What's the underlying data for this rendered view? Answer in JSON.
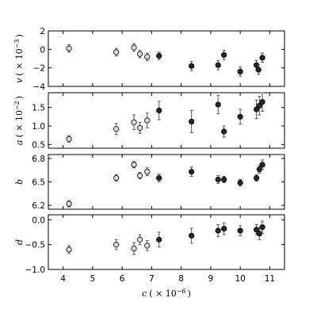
{
  "chart_data": {
    "type": "scatter",
    "layout": "four vertically stacked panels sharing the x axis",
    "grid": false,
    "legend": "none",
    "xlabel": {
      "symbol": "c",
      "unit": "( × 10",
      "exp": "−6",
      "close": ")"
    },
    "xlim": [
      3.5,
      11.5
    ],
    "xticks": [
      4,
      5,
      6,
      7,
      8,
      9,
      10,
      11
    ],
    "colors": {
      "light_marker": "#d9d9d9",
      "dark_marker": "#262626",
      "marker_edge": "#000000",
      "error_bar": "#555555",
      "axis": "#000000"
    },
    "panels": [
      {
        "id": "v",
        "ylabel": {
          "symbol": "v",
          "unit": "( × 10",
          "exp": "−3",
          "close": ")"
        },
        "ylim": [
          -4,
          2
        ],
        "yticks": [
          -4,
          -2,
          0,
          2
        ],
        "points": [
          {
            "x": 4.2,
            "y": 0.1,
            "err": 0.4,
            "group": "light"
          },
          {
            "x": 5.8,
            "y": -0.3,
            "err": 0.4,
            "group": "light"
          },
          {
            "x": 6.4,
            "y": 0.2,
            "err": 0.4,
            "group": "light"
          },
          {
            "x": 6.6,
            "y": -0.5,
            "err": 0.4,
            "group": "light"
          },
          {
            "x": 6.85,
            "y": -0.8,
            "err": 0.4,
            "group": "light"
          },
          {
            "x": 7.25,
            "y": -0.7,
            "err": 0.4,
            "group": "dark"
          },
          {
            "x": 8.35,
            "y": -1.8,
            "err": 0.5,
            "group": "dark"
          },
          {
            "x": 9.25,
            "y": -1.7,
            "err": 0.5,
            "group": "dark"
          },
          {
            "x": 9.45,
            "y": -0.6,
            "err": 0.5,
            "group": "dark"
          },
          {
            "x": 10.0,
            "y": -2.4,
            "err": 0.5,
            "group": "dark"
          },
          {
            "x": 10.55,
            "y": -1.7,
            "err": 0.5,
            "group": "dark"
          },
          {
            "x": 10.62,
            "y": -2.2,
            "err": 0.5,
            "group": "dark"
          },
          {
            "x": 10.75,
            "y": -0.9,
            "err": 0.5,
            "group": "dark"
          }
        ]
      },
      {
        "id": "a",
        "ylabel": {
          "symbol": "a",
          "unit": "( × 10",
          "exp": "−2",
          "close": ")"
        },
        "ylim": [
          0.4,
          1.9
        ],
        "yticks": [
          0.5,
          1.0,
          1.5
        ],
        "points": [
          {
            "x": 4.2,
            "y": 0.65,
            "err": 0.09,
            "group": "light"
          },
          {
            "x": 5.8,
            "y": 0.92,
            "err": 0.15,
            "group": "light"
          },
          {
            "x": 6.4,
            "y": 1.1,
            "err": 0.2,
            "group": "light"
          },
          {
            "x": 6.6,
            "y": 0.95,
            "err": 0.15,
            "group": "light"
          },
          {
            "x": 6.85,
            "y": 1.15,
            "err": 0.2,
            "group": "light"
          },
          {
            "x": 7.25,
            "y": 1.42,
            "err": 0.25,
            "group": "dark"
          },
          {
            "x": 8.35,
            "y": 1.12,
            "err": 0.3,
            "group": "dark"
          },
          {
            "x": 9.25,
            "y": 1.58,
            "err": 0.25,
            "group": "dark"
          },
          {
            "x": 9.45,
            "y": 0.85,
            "err": 0.15,
            "group": "dark"
          },
          {
            "x": 10.0,
            "y": 1.25,
            "err": 0.2,
            "group": "dark"
          },
          {
            "x": 10.55,
            "y": 1.45,
            "err": 0.25,
            "group": "dark"
          },
          {
            "x": 10.65,
            "y": 1.55,
            "err": 0.25,
            "group": "dark"
          },
          {
            "x": 10.75,
            "y": 1.65,
            "err": 0.25,
            "group": "dark"
          }
        ]
      },
      {
        "id": "b",
        "ylabel": {
          "symbol": "b",
          "unit": "",
          "exp": "",
          "close": ""
        },
        "ylim": [
          6.15,
          6.85
        ],
        "yticks": [
          6.2,
          6.5,
          6.8
        ],
        "points": [
          {
            "x": 4.2,
            "y": 6.22,
            "err": 0.04,
            "group": "light"
          },
          {
            "x": 5.8,
            "y": 6.55,
            "err": 0.04,
            "group": "light"
          },
          {
            "x": 6.4,
            "y": 6.72,
            "err": 0.04,
            "group": "light"
          },
          {
            "x": 6.6,
            "y": 6.58,
            "err": 0.04,
            "group": "light"
          },
          {
            "x": 6.85,
            "y": 6.63,
            "err": 0.05,
            "group": "light"
          },
          {
            "x": 7.25,
            "y": 6.55,
            "err": 0.05,
            "group": "dark"
          },
          {
            "x": 8.35,
            "y": 6.63,
            "err": 0.06,
            "group": "dark"
          },
          {
            "x": 9.25,
            "y": 6.53,
            "err": 0.05,
            "group": "dark"
          },
          {
            "x": 9.45,
            "y": 6.53,
            "err": 0.04,
            "group": "dark"
          },
          {
            "x": 10.0,
            "y": 6.49,
            "err": 0.04,
            "group": "dark"
          },
          {
            "x": 10.55,
            "y": 6.55,
            "err": 0.04,
            "group": "dark"
          },
          {
            "x": 10.65,
            "y": 6.66,
            "err": 0.05,
            "group": "dark"
          },
          {
            "x": 10.75,
            "y": 6.72,
            "err": 0.06,
            "group": "dark"
          }
        ]
      },
      {
        "id": "d",
        "ylabel": {
          "symbol": "d",
          "unit": "",
          "exp": "",
          "close": ""
        },
        "ylim": [
          -1.0,
          0.1
        ],
        "yticks": [
          -1.0,
          -0.5,
          0.0
        ],
        "tick_labels": [
          "−1.0",
          "−0.5",
          "0.0"
        ],
        "points": [
          {
            "x": 4.2,
            "y": -0.6,
            "err": 0.08,
            "group": "light"
          },
          {
            "x": 5.8,
            "y": -0.5,
            "err": 0.1,
            "group": "light"
          },
          {
            "x": 6.4,
            "y": -0.58,
            "err": 0.12,
            "group": "light"
          },
          {
            "x": 6.6,
            "y": -0.4,
            "err": 0.1,
            "group": "light"
          },
          {
            "x": 6.85,
            "y": -0.52,
            "err": 0.1,
            "group": "light"
          },
          {
            "x": 7.25,
            "y": -0.4,
            "err": 0.15,
            "group": "dark"
          },
          {
            "x": 8.35,
            "y": -0.32,
            "err": 0.15,
            "group": "dark"
          },
          {
            "x": 9.25,
            "y": -0.22,
            "err": 0.12,
            "group": "dark"
          },
          {
            "x": 9.45,
            "y": -0.18,
            "err": 0.12,
            "group": "dark"
          },
          {
            "x": 10.0,
            "y": -0.22,
            "err": 0.1,
            "group": "dark"
          },
          {
            "x": 10.55,
            "y": -0.2,
            "err": 0.1,
            "group": "dark"
          },
          {
            "x": 10.65,
            "y": -0.28,
            "err": 0.12,
            "group": "dark"
          },
          {
            "x": 10.75,
            "y": -0.15,
            "err": 0.12,
            "group": "dark"
          }
        ]
      }
    ]
  }
}
